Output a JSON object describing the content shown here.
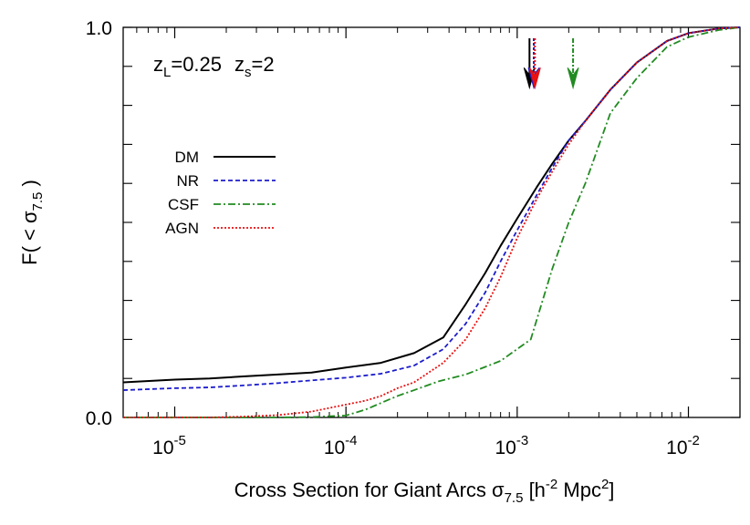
{
  "chart_data": {
    "type": "line",
    "xlabel_main": "Cross Section for Giant Arcs σ",
    "xlabel_sub": "7.5",
    "xlabel_tail_1": " [h",
    "xlabel_sup_1": "-2",
    "xlabel_tail_2": " Mpc",
    "xlabel_sup_2": "2",
    "xlabel_tail_3": "]",
    "ylabel_main": "F( < σ",
    "ylabel_sub": "7.5",
    "ylabel_tail": " )",
    "xscale": "log",
    "xlim": [
      5e-06,
      0.02
    ],
    "ylim": [
      0.0,
      1.0
    ],
    "grid": false,
    "legend_position": "left",
    "x_ticks": [
      {
        "value": 1e-05,
        "base": "10",
        "exp": "-5"
      },
      {
        "value": 0.0001,
        "base": "10",
        "exp": "-4"
      },
      {
        "value": 0.001,
        "base": "10",
        "exp": "-3"
      },
      {
        "value": 0.01,
        "base": "10",
        "exp": "-2"
      }
    ],
    "y_ticks": [
      {
        "value": 0.0,
        "label": "0.0"
      },
      {
        "value": 1.0,
        "label": "1.0"
      }
    ],
    "annotation": {
      "zl_main": "z",
      "zl_sub": "L",
      "zl_val": "=0.25",
      "zs_main": "z",
      "zs_sub": "s",
      "zs_val": "=2"
    },
    "series": [
      {
        "name": "DM",
        "color": "#000000",
        "dash": "solid",
        "x": [
          5e-06,
          1e-05,
          1.6e-05,
          2.5e-05,
          4e-05,
          6.3e-05,
          0.0001,
          0.00016,
          0.00025,
          0.00037,
          0.0005,
          0.00065,
          0.0008,
          0.001,
          0.0013,
          0.0016,
          0.002,
          0.0025,
          0.0035,
          0.005,
          0.0075,
          0.01,
          0.015,
          0.02
        ],
        "y": [
          0.09,
          0.097,
          0.1,
          0.105,
          0.11,
          0.115,
          0.128,
          0.14,
          0.165,
          0.205,
          0.29,
          0.37,
          0.44,
          0.51,
          0.59,
          0.65,
          0.71,
          0.76,
          0.84,
          0.91,
          0.965,
          0.985,
          0.997,
          1.0
        ]
      },
      {
        "name": "NR",
        "color": "#1c1ccc",
        "dash": "5,3",
        "x": [
          5e-06,
          1e-05,
          1.6e-05,
          2.5e-05,
          4e-05,
          6.3e-05,
          0.0001,
          0.00016,
          0.00025,
          0.00037,
          0.0005,
          0.00065,
          0.0008,
          0.001,
          0.0013,
          0.0016,
          0.002,
          0.0025,
          0.0035,
          0.005,
          0.0075,
          0.01,
          0.015,
          0.02
        ],
        "y": [
          0.07,
          0.075,
          0.077,
          0.082,
          0.088,
          0.095,
          0.102,
          0.112,
          0.133,
          0.175,
          0.24,
          0.32,
          0.4,
          0.48,
          0.57,
          0.64,
          0.71,
          0.76,
          0.84,
          0.91,
          0.965,
          0.985,
          0.997,
          1.0
        ]
      },
      {
        "name": "CSF",
        "color": "#228b22",
        "dash": "8,3,2,3",
        "x": [
          5e-06,
          1e-05,
          2e-05,
          4e-05,
          6.3e-05,
          0.0001,
          0.00013,
          0.00016,
          0.0002,
          0.00025,
          0.00035,
          0.0005,
          0.0008,
          0.0012,
          0.0016,
          0.002,
          0.0025,
          0.0035,
          0.005,
          0.0075,
          0.01,
          0.015,
          0.02
        ],
        "y": [
          0.0,
          0.0,
          0.0,
          0.0,
          0.001,
          0.005,
          0.02,
          0.037,
          0.055,
          0.07,
          0.093,
          0.11,
          0.145,
          0.2,
          0.38,
          0.5,
          0.6,
          0.78,
          0.87,
          0.95,
          0.975,
          0.993,
          1.0
        ]
      },
      {
        "name": "AGN",
        "color": "#e81010",
        "dash": "2,2",
        "x": [
          5e-06,
          1e-05,
          1.6e-05,
          2.5e-05,
          4e-05,
          6.3e-05,
          0.0001,
          0.00013,
          0.00016,
          0.0002,
          0.00025,
          0.00037,
          0.0005,
          0.00065,
          0.0008,
          0.001,
          0.0013,
          0.0016,
          0.002,
          0.0025,
          0.0035,
          0.005,
          0.0075,
          0.01,
          0.015,
          0.02
        ],
        "y": [
          0.0,
          0.0,
          0.0,
          0.002,
          0.006,
          0.015,
          0.033,
          0.043,
          0.055,
          0.075,
          0.09,
          0.14,
          0.2,
          0.28,
          0.36,
          0.46,
          0.56,
          0.63,
          0.7,
          0.76,
          0.84,
          0.91,
          0.965,
          0.985,
          0.997,
          1.0
        ]
      }
    ],
    "arrows": [
      {
        "series": "DM",
        "x": 0.00118,
        "color": "#000000",
        "dash": "solid"
      },
      {
        "series": "NR",
        "x": 0.00125,
        "color": "#1c1ccc",
        "dash": "3,2"
      },
      {
        "series": "AGN",
        "x": 0.00127,
        "color": "#e81010",
        "dash": "2,2"
      },
      {
        "series": "CSF",
        "x": 0.00212,
        "color": "#228b22",
        "dash": "5,2,2,2"
      }
    ]
  }
}
